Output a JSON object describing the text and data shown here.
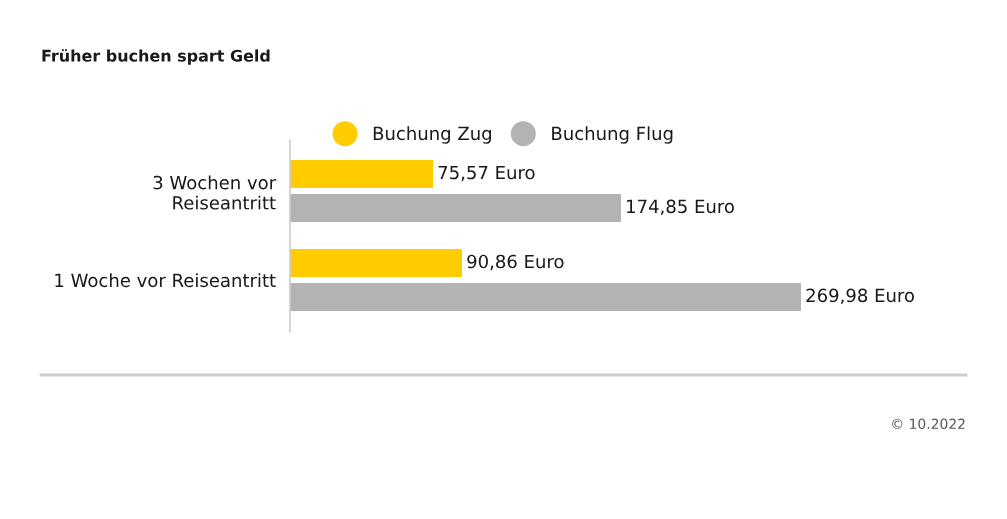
{
  "chart_data": {
    "type": "bar",
    "orientation": "horizontal",
    "title": "Früher buchen spart Geld",
    "categories": [
      "3 Wochen vor\nReiseantritt",
      "1 Woche vor Reiseantritt"
    ],
    "series": [
      {
        "name": "Buchung Zug",
        "color": "#ffcc00",
        "values": [
          75.57,
          90.86
        ],
        "value_labels": [
          "75,57 Euro",
          "90,86 Euro"
        ]
      },
      {
        "name": "Buchung Flug",
        "color": "#b3b3b3",
        "values": [
          174.85,
          269.98
        ],
        "value_labels": [
          "174,85 Euro",
          "269,98 Euro"
        ]
      }
    ],
    "tick_labels": "y",
    "legend": "top",
    "grid": false,
    "annotations": [
      "© 10.2022"
    ]
  }
}
